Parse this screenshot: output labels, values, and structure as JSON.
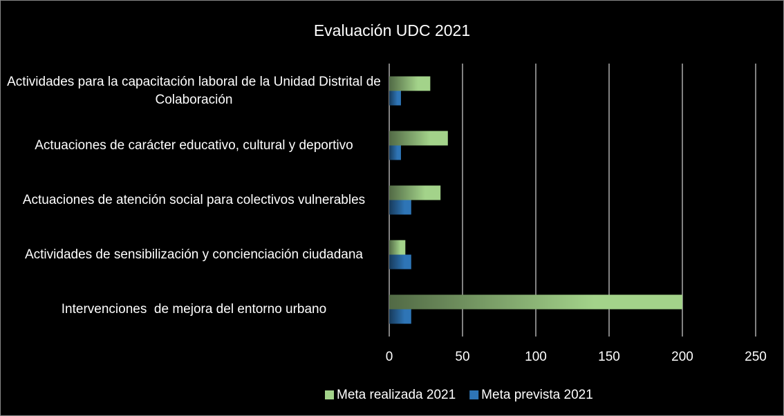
{
  "chart_data": {
    "type": "barh",
    "title": "Evaluación UDC 2021",
    "categories": [
      "Actividades para la capacitación laboral de la Unidad Distrital de Colaboración",
      "Actuaciones de carácter educativo, cultural y deportivo",
      "Actuaciones de atención social para colectivos vulnerables",
      "Actividades de sensibilización y concienciación ciudadana",
      "Intervenciones  de mejora del entorno urbano"
    ],
    "series": [
      {
        "name": "Meta realizada 2021",
        "color": "#a3d38a",
        "values": [
          28,
          40,
          35,
          11,
          200
        ]
      },
      {
        "name": "Meta prevista 2021",
        "color": "#2e75b6",
        "values": [
          8,
          8,
          15,
          15,
          15
        ]
      }
    ],
    "xlim": [
      0,
      250
    ],
    "xticks": [
      0,
      50,
      100,
      150,
      200,
      250
    ],
    "grid": true
  }
}
